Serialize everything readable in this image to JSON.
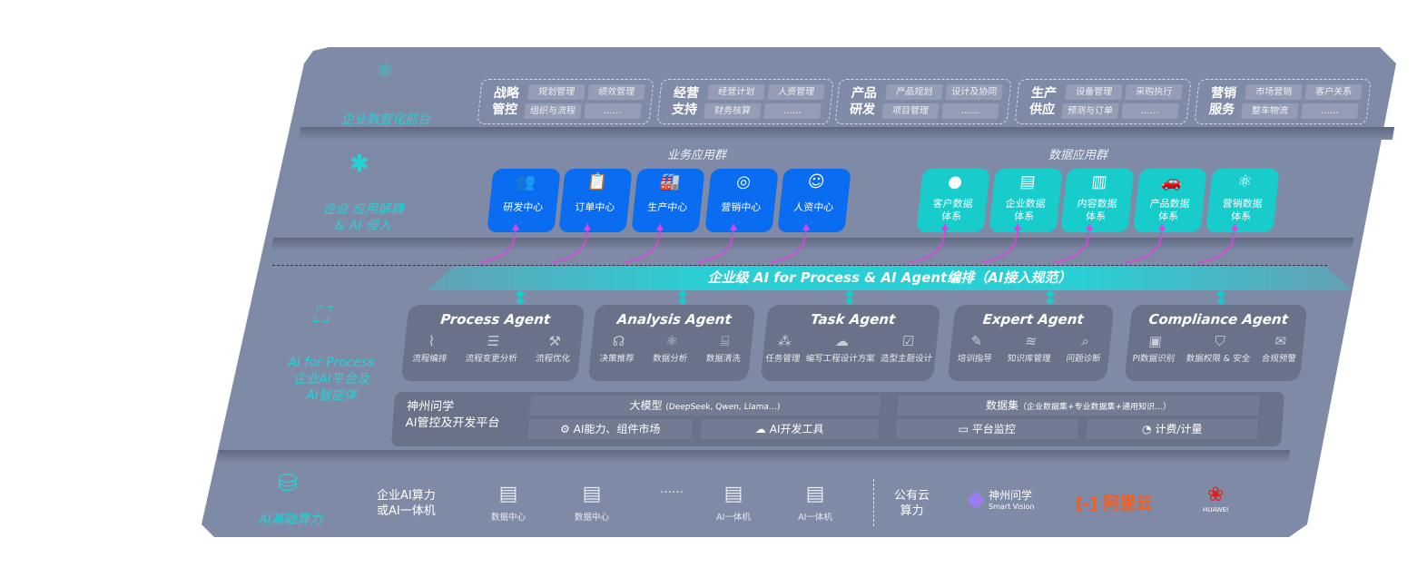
{
  "layers": {
    "frontend": {
      "label": "企业数智化前台",
      "icon": "brain-icon",
      "groups": [
        {
          "title": "战略管控",
          "items": [
            "规划管理",
            "绩效管理",
            "组织与流程",
            "……"
          ]
        },
        {
          "title": "经营支持",
          "items": [
            "经营计划",
            "人资管理",
            "财务核算",
            "……"
          ]
        },
        {
          "title": "产品研发",
          "items": [
            "产品规划",
            "设计及协同",
            "项目管理",
            "……"
          ]
        },
        {
          "title": "生产供应",
          "items": [
            "设备管理",
            "采购执行",
            "预测与订单",
            "……"
          ]
        },
        {
          "title": "营销服务",
          "items": [
            "市场营销",
            "客户关系",
            "整车物流",
            "……"
          ]
        }
      ]
    },
    "apps": {
      "label_line1": "企业 应用解耦",
      "label_line2": "& AI 侵入",
      "icon": "molecule-icon",
      "business_title": "业务应用群",
      "data_title": "数据应用群",
      "business": [
        {
          "label": "研发中心",
          "icon": "people-icon"
        },
        {
          "label": "订单中心",
          "icon": "clipboard-icon"
        },
        {
          "label": "生产中心",
          "icon": "factory-icon"
        },
        {
          "label": "营销中心",
          "icon": "target-icon"
        },
        {
          "label": "人资中心",
          "icon": "person-icon"
        }
      ],
      "data": [
        {
          "line1": "客户数据",
          "line2": "体系",
          "icon": "user-icon"
        },
        {
          "line1": "企业数据",
          "line2": "体系",
          "icon": "building-icon"
        },
        {
          "line1": "内容数据",
          "line2": "体系",
          "icon": "books-icon"
        },
        {
          "line1": "产品数据",
          "line2": "体系",
          "icon": "car-icon"
        },
        {
          "line1": "营销数据",
          "line2": "体系",
          "icon": "atom-icon"
        }
      ]
    },
    "ai": {
      "banner": "企业级 AI for Process & AI Agent编排（AI接入规范）",
      "label_line1": "AI for Process",
      "label_line2": "企业AI平台及",
      "label_line3": "AI智能体",
      "icon": "face-scan-icon",
      "agents": [
        {
          "title": "Process Agent",
          "items": [
            "流程编排",
            "流程变更分析",
            "流程优化"
          ]
        },
        {
          "title": "Analysis Agent",
          "items": [
            "决策推荐",
            "数据分析",
            "数据清洗"
          ]
        },
        {
          "title": "Task Agent",
          "items": [
            "任务管理",
            "编写工程设计方案",
            "造型主题设计"
          ]
        },
        {
          "title": "Expert Agent",
          "items": [
            "培训指导",
            "知识库管理",
            "问题诊断"
          ]
        },
        {
          "title": "Compliance Agent",
          "items": [
            "PI数据识别",
            "数据权限 & 安全",
            "合规预警"
          ]
        }
      ],
      "platform": {
        "line1": "神州问学",
        "line2": "AI管控及开发平台",
        "model": "大模型",
        "model_note": "(DeepSeek, Qwen, Llama…)",
        "dataset": "数据集",
        "dataset_note": "（企业数据集+专业数据集+通用知识…）",
        "tools": [
          "AI能力、组件市场",
          "AI开发工具",
          "平台监控",
          "计费/计量"
        ]
      }
    }
  },
  "compute": {
    "label": "AI基础算力",
    "icon": "database-icon",
    "private_line1": "企业AI算力",
    "private_line2": "或AI一体机",
    "servers": [
      "数据中心",
      "数据中心",
      "……",
      "AI一体机",
      "AI一体机"
    ],
    "public_line1": "公有云",
    "public_line2": "算力",
    "vendors": [
      {
        "name": "神州问学",
        "sub": "Smart Vision"
      },
      {
        "name": "阿里云"
      },
      {
        "name": "HUAWEI"
      }
    ]
  },
  "colors": {
    "board": "#7f8aa6",
    "accent": "#22d4d6",
    "blue": "#0a6cf0",
    "teal": "#18cccc",
    "arrow": "#e040e0"
  }
}
